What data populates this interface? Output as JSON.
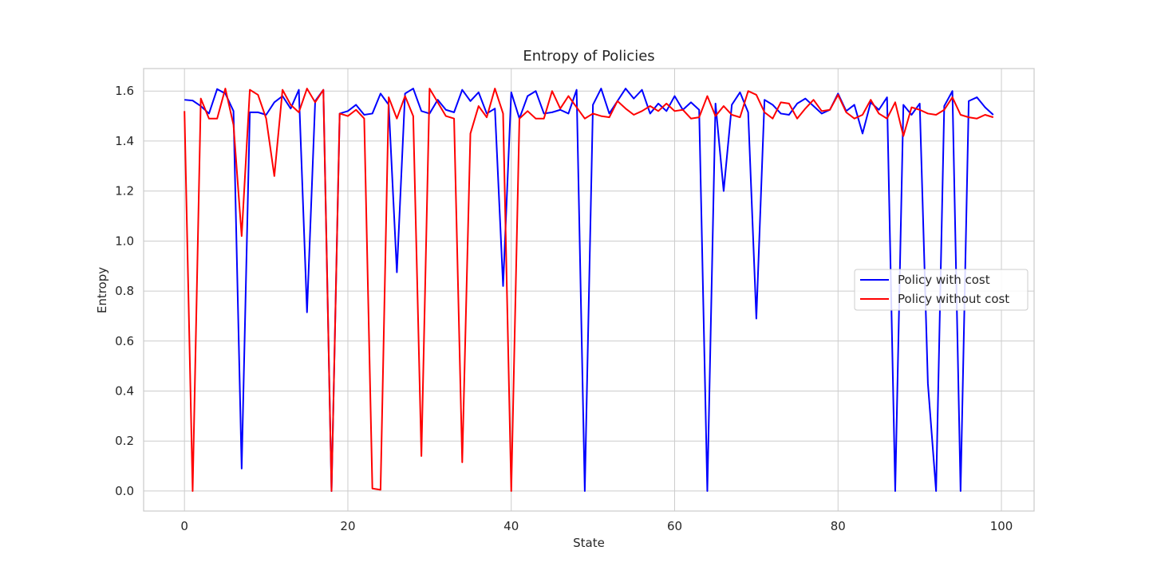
{
  "chart_data": {
    "type": "line",
    "title": "Entropy of Policies",
    "xlabel": "State",
    "ylabel": "Entropy",
    "xlim": [
      -5,
      104
    ],
    "ylim": [
      -0.08,
      1.69
    ],
    "xticks": [
      0,
      20,
      40,
      60,
      80,
      100
    ],
    "yticks": [
      0.0,
      0.2,
      0.4,
      0.6,
      0.8,
      1.0,
      1.2,
      1.4,
      1.6
    ],
    "xtick_labels": [
      "0",
      "20",
      "40",
      "60",
      "80",
      "100"
    ],
    "ytick_labels": [
      "0.0",
      "0.2",
      "0.4",
      "0.6",
      "0.8",
      "1.0",
      "1.2",
      "1.4",
      "1.6"
    ],
    "grid": true,
    "legend_position": "center-right",
    "x": [
      0,
      1,
      2,
      3,
      4,
      5,
      6,
      7,
      8,
      9,
      10,
      11,
      12,
      13,
      14,
      15,
      16,
      17,
      18,
      19,
      20,
      21,
      22,
      23,
      24,
      25,
      26,
      27,
      28,
      29,
      30,
      31,
      32,
      33,
      34,
      35,
      36,
      37,
      38,
      39,
      40,
      41,
      42,
      43,
      44,
      45,
      46,
      47,
      48,
      49,
      50,
      51,
      52,
      53,
      54,
      55,
      56,
      57,
      58,
      59,
      60,
      61,
      62,
      63,
      64,
      65,
      66,
      67,
      68,
      69,
      70,
      71,
      72,
      73,
      74,
      75,
      76,
      77,
      78,
      79,
      80,
      81,
      82,
      83,
      84,
      85,
      86,
      87,
      88,
      89,
      90,
      91,
      92,
      93,
      94,
      95,
      96,
      97,
      98,
      99
    ],
    "series": [
      {
        "name": "Policy with cost",
        "color": "#0000ff",
        "values": [
          1.565,
          1.562,
          1.54,
          1.51,
          1.608,
          1.59,
          1.52,
          0.09,
          1.515,
          1.515,
          1.505,
          1.555,
          1.58,
          1.53,
          1.605,
          0.715,
          1.56,
          1.605,
          0.0,
          1.51,
          1.52,
          1.545,
          1.505,
          1.51,
          1.59,
          1.545,
          0.875,
          1.59,
          1.61,
          1.52,
          1.51,
          1.565,
          1.525,
          1.515,
          1.605,
          1.56,
          1.595,
          1.51,
          1.53,
          0.82,
          1.595,
          1.49,
          1.58,
          1.6,
          1.51,
          1.515,
          1.525,
          1.51,
          1.605,
          0.0,
          1.545,
          1.61,
          1.51,
          1.56,
          1.61,
          1.57,
          1.605,
          1.51,
          1.55,
          1.52,
          1.58,
          1.525,
          1.555,
          1.525,
          0.0,
          1.55,
          1.2,
          1.545,
          1.595,
          1.515,
          0.69,
          1.565,
          1.545,
          1.51,
          1.505,
          1.55,
          1.57,
          1.54,
          1.51,
          1.525,
          1.59,
          1.52,
          1.545,
          1.43,
          1.555,
          1.525,
          1.575,
          0.0,
          1.545,
          1.505,
          1.55,
          0.43,
          0.0,
          1.54,
          1.6,
          0.0,
          1.56,
          1.575,
          1.535,
          1.505
        ]
      },
      {
        "name": "Policy without cost",
        "color": "#ff0000",
        "values": [
          1.52,
          0.0,
          1.57,
          1.49,
          1.49,
          1.61,
          1.465,
          1.02,
          1.605,
          1.585,
          1.49,
          1.26,
          1.605,
          1.545,
          1.515,
          1.61,
          1.555,
          1.605,
          0.0,
          1.51,
          1.5,
          1.525,
          1.49,
          0.01,
          0.005,
          1.575,
          1.49,
          1.58,
          1.5,
          0.14,
          1.61,
          1.555,
          1.5,
          1.49,
          0.115,
          1.43,
          1.54,
          1.495,
          1.61,
          1.51,
          0.0,
          1.49,
          1.52,
          1.49,
          1.49,
          1.6,
          1.53,
          1.58,
          1.535,
          1.49,
          1.51,
          1.5,
          1.495,
          1.56,
          1.53,
          1.505,
          1.52,
          1.54,
          1.52,
          1.55,
          1.52,
          1.525,
          1.49,
          1.495,
          1.58,
          1.5,
          1.54,
          1.505,
          1.495,
          1.6,
          1.585,
          1.515,
          1.49,
          1.555,
          1.55,
          1.49,
          1.53,
          1.565,
          1.52,
          1.525,
          1.585,
          1.515,
          1.49,
          1.505,
          1.565,
          1.51,
          1.49,
          1.555,
          1.42,
          1.535,
          1.525,
          1.51,
          1.505,
          1.525,
          1.575,
          1.505,
          1.495,
          1.49,
          1.505,
          1.495
        ]
      }
    ]
  }
}
